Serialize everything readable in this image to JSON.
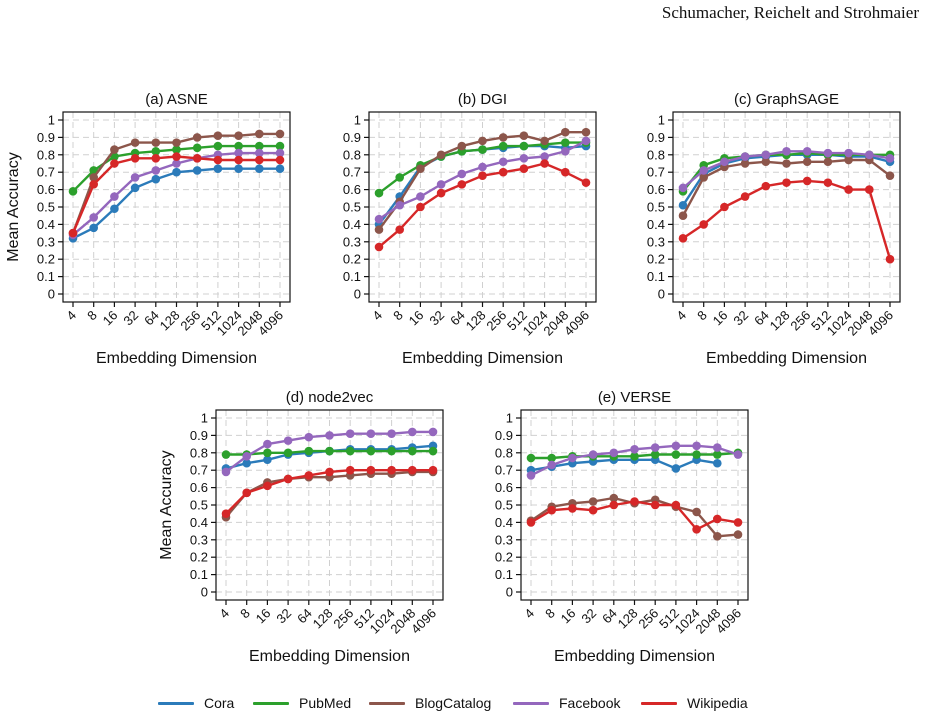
{
  "header": {
    "running_head": "Schumacher, Reichelt and Strohmaier"
  },
  "colors": {
    "Cora": "#2b7bba",
    "PubMed": "#2ca02c",
    "BlogCatalog": "#8c564b",
    "Facebook": "#9467bd",
    "Wikipedia": "#d62728"
  },
  "legend": [
    "Cora",
    "PubMed",
    "BlogCatalog",
    "Facebook",
    "Wikipedia"
  ],
  "chart_data": [
    {
      "type": "line",
      "title": "(a) ASNE",
      "xlabel": "Embedding Dimension",
      "ylabel": "Mean Accuracy",
      "x": [
        "4",
        "8",
        "16",
        "32",
        "64",
        "128",
        "256",
        "512",
        "1024",
        "2048",
        "4096"
      ],
      "yticks": [
        "0",
        "0.1",
        "0.2",
        "0.3",
        "0.4",
        "0.5",
        "0.6",
        "0.7",
        "0.8",
        "0.9",
        "1"
      ],
      "ylim": [
        0,
        1
      ],
      "grid": true,
      "series": [
        {
          "name": "Cora",
          "values": [
            0.32,
            0.38,
            0.49,
            0.61,
            0.66,
            0.7,
            0.71,
            0.72,
            0.72,
            0.72,
            0.72
          ]
        },
        {
          "name": "PubMed",
          "values": [
            0.59,
            0.71,
            0.79,
            0.81,
            0.82,
            0.83,
            0.84,
            0.85,
            0.85,
            0.85,
            0.85
          ]
        },
        {
          "name": "BlogCatalog",
          "values": [
            0.35,
            0.67,
            0.83,
            0.87,
            0.87,
            0.87,
            0.9,
            0.91,
            0.91,
            0.92,
            0.92
          ]
        },
        {
          "name": "Facebook",
          "values": [
            0.34,
            0.44,
            0.56,
            0.67,
            0.71,
            0.75,
            0.78,
            0.8,
            0.81,
            0.81,
            0.81
          ]
        },
        {
          "name": "Wikipedia",
          "values": [
            0.35,
            0.63,
            0.75,
            0.78,
            0.78,
            0.79,
            0.78,
            0.77,
            0.77,
            0.77,
            0.77
          ]
        }
      ]
    },
    {
      "type": "line",
      "title": "(b) DGI",
      "xlabel": "Embedding Dimension",
      "ylabel": "",
      "x": [
        "4",
        "8",
        "16",
        "32",
        "64",
        "128",
        "256",
        "512",
        "1024",
        "2048",
        "4096"
      ],
      "yticks": [
        "0",
        "0.1",
        "0.2",
        "0.3",
        "0.4",
        "0.5",
        "0.6",
        "0.7",
        "0.8",
        "0.9",
        "1"
      ],
      "ylim": [
        0,
        1
      ],
      "grid": true,
      "series": [
        {
          "name": "Cora",
          "values": [
            0.4,
            0.56,
            0.73,
            0.79,
            0.82,
            0.83,
            0.84,
            0.85,
            0.85,
            0.84,
            0.85
          ]
        },
        {
          "name": "PubMed",
          "values": [
            0.58,
            0.67,
            0.74,
            0.79,
            0.82,
            0.83,
            0.85,
            0.85,
            0.86,
            0.87,
            0.87
          ]
        },
        {
          "name": "BlogCatalog",
          "values": [
            0.37,
            0.53,
            0.72,
            0.8,
            0.85,
            0.88,
            0.9,
            0.91,
            0.88,
            0.93,
            0.93
          ]
        },
        {
          "name": "Facebook",
          "values": [
            0.43,
            0.51,
            0.56,
            0.63,
            0.69,
            0.73,
            0.76,
            0.78,
            0.79,
            0.82,
            0.88
          ]
        },
        {
          "name": "Wikipedia",
          "values": [
            0.27,
            0.37,
            0.5,
            0.58,
            0.63,
            0.68,
            0.7,
            0.72,
            0.75,
            0.7,
            0.64
          ]
        }
      ]
    },
    {
      "type": "line",
      "title": "(c) GraphSAGE",
      "xlabel": "Embedding Dimension",
      "ylabel": "",
      "x": [
        "4",
        "8",
        "16",
        "32",
        "64",
        "128",
        "256",
        "512",
        "1024",
        "2048",
        "4096"
      ],
      "yticks": [
        "0",
        "0.1",
        "0.2",
        "0.3",
        "0.4",
        "0.5",
        "0.6",
        "0.7",
        "0.8",
        "0.9",
        "1"
      ],
      "ylim": [
        0,
        1
      ],
      "grid": true,
      "series": [
        {
          "name": "Cora",
          "values": [
            0.51,
            0.69,
            0.75,
            0.78,
            0.79,
            0.8,
            0.8,
            0.8,
            0.79,
            0.79,
            0.76
          ]
        },
        {
          "name": "PubMed",
          "values": [
            0.59,
            0.74,
            0.78,
            0.79,
            0.8,
            0.8,
            0.81,
            0.8,
            0.8,
            0.8,
            0.8
          ]
        },
        {
          "name": "BlogCatalog",
          "values": [
            0.45,
            0.67,
            0.73,
            0.75,
            0.76,
            0.75,
            0.76,
            0.76,
            0.77,
            0.77,
            0.68
          ]
        },
        {
          "name": "Facebook",
          "values": [
            0.61,
            0.71,
            0.76,
            0.79,
            0.8,
            0.82,
            0.82,
            0.81,
            0.81,
            0.8,
            0.78
          ]
        },
        {
          "name": "Wikipedia",
          "values": [
            0.32,
            0.4,
            0.5,
            0.56,
            0.62,
            0.64,
            0.65,
            0.64,
            0.6,
            0.6,
            0.2
          ]
        }
      ]
    },
    {
      "type": "line",
      "title": "(d) node2vec",
      "xlabel": "Embedding Dimension",
      "ylabel": "Mean Accuracy",
      "x": [
        "4",
        "8",
        "16",
        "32",
        "64",
        "128",
        "256",
        "512",
        "1024",
        "2048",
        "4096"
      ],
      "yticks": [
        "0",
        "0.1",
        "0.2",
        "0.3",
        "0.4",
        "0.5",
        "0.6",
        "0.7",
        "0.8",
        "0.9",
        "1"
      ],
      "ylim": [
        0,
        1
      ],
      "grid": true,
      "series": [
        {
          "name": "Cora",
          "values": [
            0.71,
            0.74,
            0.76,
            0.79,
            0.8,
            0.81,
            0.82,
            0.82,
            0.82,
            0.83,
            0.84
          ]
        },
        {
          "name": "PubMed",
          "values": [
            0.79,
            0.79,
            0.8,
            0.8,
            0.81,
            0.81,
            0.81,
            0.81,
            0.81,
            0.81,
            0.81
          ]
        },
        {
          "name": "BlogCatalog",
          "values": [
            0.43,
            0.57,
            0.63,
            0.65,
            0.66,
            0.66,
            0.67,
            0.68,
            0.68,
            0.69,
            0.69
          ]
        },
        {
          "name": "Facebook",
          "values": [
            0.69,
            0.78,
            0.85,
            0.87,
            0.89,
            0.9,
            0.91,
            0.91,
            0.91,
            0.92,
            0.92
          ]
        },
        {
          "name": "Wikipedia",
          "values": [
            0.45,
            0.57,
            0.61,
            0.65,
            0.67,
            0.69,
            0.7,
            0.7,
            0.7,
            0.7,
            0.7
          ]
        }
      ]
    },
    {
      "type": "line",
      "title": "(e) VERSE",
      "xlabel": "Embedding Dimension",
      "ylabel": "",
      "x": [
        "4",
        "8",
        "16",
        "32",
        "64",
        "128",
        "256",
        "512",
        "1024",
        "2048",
        "4096"
      ],
      "yticks": [
        "0",
        "0.1",
        "0.2",
        "0.3",
        "0.4",
        "0.5",
        "0.6",
        "0.7",
        "0.8",
        "0.9",
        "1"
      ],
      "ylim": [
        0,
        1
      ],
      "grid": true,
      "series": [
        {
          "name": "Cora",
          "values": [
            0.7,
            0.72,
            0.74,
            0.75,
            0.76,
            0.76,
            0.76,
            0.71,
            0.76,
            0.74,
            null
          ]
        },
        {
          "name": "PubMed",
          "values": [
            0.77,
            0.77,
            0.78,
            0.78,
            0.78,
            0.78,
            0.79,
            0.79,
            0.79,
            0.79,
            0.8
          ]
        },
        {
          "name": "BlogCatalog",
          "values": [
            0.41,
            0.49,
            0.51,
            0.52,
            0.54,
            0.51,
            0.53,
            0.49,
            0.46,
            0.32,
            0.33
          ]
        },
        {
          "name": "Facebook",
          "values": [
            0.67,
            0.73,
            0.77,
            0.79,
            0.8,
            0.82,
            0.83,
            0.84,
            0.84,
            0.83,
            0.79
          ]
        },
        {
          "name": "Wikipedia",
          "values": [
            0.4,
            0.47,
            0.48,
            0.47,
            0.5,
            0.52,
            0.5,
            0.5,
            0.36,
            0.42,
            0.4
          ]
        }
      ]
    }
  ]
}
